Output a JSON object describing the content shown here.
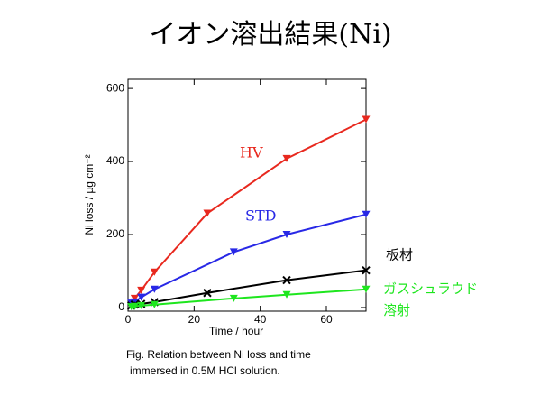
{
  "chart_data": {
    "type": "line",
    "title": "イオン溶出結果(Ni)",
    "x_label": "Time / hour",
    "y_label": "Ni loss / µg cm⁻²",
    "caption": [
      "Fig.  Relation between Ni loss and time",
      "immersed in 0.5M HCl solution."
    ],
    "xlim": [
      0,
      72
    ],
    "ylim": [
      -10,
      625
    ],
    "xticks": [
      0,
      20,
      40,
      60
    ],
    "yticks": [
      0,
      200,
      400,
      600
    ],
    "grid": false,
    "series": [
      {
        "name": "HV",
        "color": "#e8281e",
        "marker": "triangle-down",
        "x": [
          2,
          4,
          8,
          24,
          48,
          72
        ],
        "values": [
          25,
          47,
          97,
          258,
          408,
          515
        ]
      },
      {
        "name": "STD",
        "color": "#2828e6",
        "marker": "triangle-down",
        "x": [
          1,
          2,
          4,
          8,
          32,
          48,
          72
        ],
        "values": [
          12,
          15,
          28,
          50,
          152,
          200,
          255
        ]
      },
      {
        "name": "板材",
        "color": "#000000",
        "marker": "cross",
        "x": [
          1,
          2,
          4,
          8,
          24,
          48,
          72
        ],
        "values": [
          5,
          8,
          10,
          15,
          40,
          75,
          102
        ]
      },
      {
        "name": "ガスシュラウド溶射",
        "color": "#1ee61e",
        "marker": "triangle-down",
        "x": [
          1,
          2,
          4,
          8,
          32,
          48,
          72
        ],
        "values": [
          2,
          3,
          5,
          8,
          25,
          35,
          50
        ]
      }
    ]
  }
}
